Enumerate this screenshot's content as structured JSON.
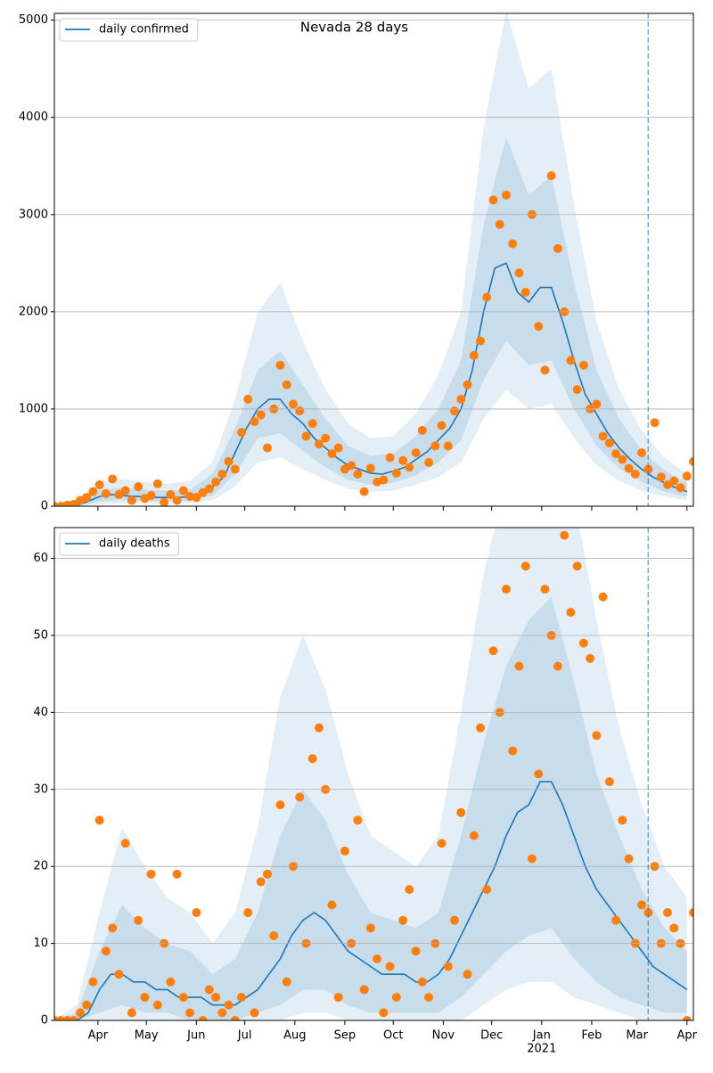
{
  "chart_data": [
    {
      "type": "line",
      "title": "Nevada 28 days",
      "xlim": [
        4,
        400
      ],
      "ylim": [
        0,
        5070
      ],
      "yticks": [
        0,
        1000,
        2000,
        3000,
        4000,
        5000
      ],
      "xticks": [
        31,
        61,
        92,
        122,
        153,
        184,
        214,
        245,
        275,
        306,
        337,
        365,
        396
      ],
      "grid": true,
      "legend": "upper left",
      "vline": 372,
      "series": [
        {
          "name": "daily confirmed",
          "color": "#1f77b4",
          "x": [
            4,
            11,
            18,
            25,
            32,
            39,
            46,
            53,
            60,
            67,
            74,
            81,
            88,
            95,
            102,
            109,
            116,
            123,
            130,
            137,
            144,
            151,
            158,
            165,
            172,
            179,
            186,
            193,
            200,
            207,
            214,
            221,
            228,
            235,
            242,
            249,
            256,
            263,
            270,
            277,
            284,
            291,
            298,
            305,
            312,
            319,
            326,
            333,
            340,
            347,
            354,
            361,
            368,
            375,
            382,
            389,
            396
          ],
          "values": [
            0,
            0,
            10,
            50,
            100,
            120,
            110,
            100,
            100,
            90,
            90,
            90,
            100,
            130,
            200,
            300,
            550,
            800,
            1000,
            1100,
            1100,
            950,
            850,
            700,
            600,
            500,
            420,
            380,
            340,
            330,
            360,
            400,
            480,
            560,
            680,
            800,
            1000,
            1400,
            2000,
            2450,
            2500,
            2200,
            2100,
            2250,
            2250,
            1900,
            1500,
            1150,
            950,
            750,
            600,
            480,
            380,
            300,
            240,
            190,
            150
          ]
        },
        {
          "color": "#ff7f0e",
          "x": [
            4,
            8,
            12,
            16,
            20,
            24,
            28,
            32,
            36,
            40,
            44,
            48,
            52,
            56,
            60,
            64,
            68,
            72,
            76,
            80,
            84,
            88,
            92,
            96,
            100,
            104,
            108,
            112,
            116,
            120,
            124,
            128,
            132,
            136,
            140,
            144,
            148,
            152,
            156,
            160,
            164,
            168,
            172,
            176,
            180,
            184,
            188,
            192,
            196,
            200,
            204,
            208,
            212,
            216,
            220,
            224,
            228,
            232,
            236,
            240,
            244,
            248,
            252,
            256,
            260,
            264,
            268,
            272,
            276,
            280,
            284,
            288,
            292,
            296,
            300,
            304,
            308,
            312,
            316,
            320,
            324,
            328,
            332,
            336,
            340,
            344,
            348,
            352,
            356,
            360,
            364,
            368,
            372,
            376,
            380,
            384,
            388,
            392,
            396,
            400
          ],
          "values": [
            0,
            0,
            10,
            20,
            60,
            90,
            150,
            220,
            130,
            280,
            120,
            160,
            60,
            200,
            80,
            110,
            230,
            40,
            120,
            60,
            160,
            100,
            90,
            140,
            180,
            250,
            330,
            460,
            380,
            760,
            1100,
            870,
            940,
            600,
            1000,
            1450,
            1250,
            1050,
            980,
            720,
            850,
            640,
            700,
            540,
            600,
            380,
            420,
            330,
            150,
            390,
            250,
            270,
            500,
            340,
            470,
            400,
            550,
            780,
            450,
            620,
            830,
            620,
            980,
            1100,
            1250,
            1550,
            1700,
            2150,
            3150,
            2900,
            3200,
            2700,
            2400,
            2200,
            3000,
            1850,
            1400,
            3400,
            2650,
            2000,
            1500,
            1200,
            1450,
            1000,
            1050,
            720,
            650,
            540,
            480,
            390,
            330,
            550,
            380,
            860,
            300,
            220,
            260,
            190,
            310,
            460
          ]
        }
      ],
      "bands": [
        {
          "color": "#1f77b4",
          "opacity": 0.12,
          "x": [
            4,
            18,
            32,
            46,
            60,
            74,
            88,
            102,
            116,
            130,
            144,
            158,
            172,
            186,
            200,
            214,
            228,
            242,
            256,
            270,
            284,
            298,
            312,
            326,
            340,
            354,
            368,
            382,
            396
          ],
          "lower": [
            0,
            0,
            20,
            30,
            30,
            30,
            30,
            60,
            200,
            450,
            500,
            380,
            270,
            180,
            150,
            160,
            220,
            300,
            450,
            900,
            1200,
            1000,
            1050,
            700,
            420,
            260,
            160,
            100,
            60
          ],
          "upper": [
            20,
            60,
            250,
            280,
            250,
            230,
            260,
            450,
            1100,
            2000,
            2300,
            1700,
            1200,
            850,
            700,
            720,
            950,
            1350,
            2000,
            3900,
            5100,
            4300,
            4500,
            3100,
            1900,
            1200,
            780,
            500,
            330
          ]
        },
        {
          "color": "#1f77b4",
          "opacity": 0.14,
          "x": [
            4,
            18,
            32,
            46,
            60,
            74,
            88,
            102,
            116,
            130,
            144,
            158,
            172,
            186,
            200,
            214,
            228,
            242,
            256,
            270,
            284,
            298,
            312,
            326,
            340,
            354,
            368,
            382,
            396
          ],
          "lower": [
            0,
            0,
            50,
            60,
            55,
            50,
            55,
            110,
            330,
            700,
            750,
            570,
            400,
            270,
            220,
            240,
            320,
            450,
            680,
            1300,
            1700,
            1450,
            1500,
            1000,
            620,
            390,
            250,
            150,
            95
          ],
          "upper": [
            10,
            30,
            170,
            190,
            170,
            160,
            170,
            330,
            800,
            1400,
            1600,
            1250,
            900,
            620,
            520,
            540,
            720,
            1000,
            1500,
            2900,
            3800,
            3200,
            3400,
            2300,
            1400,
            900,
            570,
            370,
            240
          ]
        }
      ]
    },
    {
      "type": "line",
      "xlim": [
        4,
        400
      ],
      "ylim": [
        0,
        64
      ],
      "yticks": [
        0,
        10,
        20,
        30,
        40,
        50,
        60
      ],
      "xticks": [
        {
          "value": 31,
          "label": "Apr"
        },
        {
          "value": 61,
          "label": "May"
        },
        {
          "value": 92,
          "label": "Jun"
        },
        {
          "value": 122,
          "label": "Jul"
        },
        {
          "value": 153,
          "label": "Aug"
        },
        {
          "value": 184,
          "label": "Sep"
        },
        {
          "value": 214,
          "label": "Oct"
        },
        {
          "value": 245,
          "label": "Nov"
        },
        {
          "value": 275,
          "label": "Dec"
        },
        {
          "value": 306,
          "label": "Jan"
        },
        {
          "value": 337,
          "label": "Feb"
        },
        {
          "value": 365,
          "label": "Mar"
        },
        {
          "value": 396,
          "label": "Apr"
        }
      ],
      "x_year_marker": {
        "value": 306,
        "label": "2021"
      },
      "grid": true,
      "legend": "upper left",
      "vline": 372,
      "series": [
        {
          "name": "daily deaths",
          "color": "#1f77b4",
          "x": [
            4,
            11,
            18,
            25,
            32,
            39,
            46,
            53,
            60,
            67,
            74,
            81,
            88,
            95,
            102,
            109,
            116,
            123,
            130,
            137,
            144,
            151,
            158,
            165,
            172,
            179,
            186,
            193,
            200,
            207,
            214,
            221,
            228,
            235,
            242,
            249,
            256,
            263,
            270,
            277,
            284,
            291,
            298,
            305,
            312,
            319,
            326,
            333,
            340,
            347,
            354,
            361,
            368,
            375,
            382,
            389,
            396
          ],
          "values": [
            0,
            0,
            0,
            1,
            4,
            6,
            6,
            5,
            5,
            4,
            4,
            3,
            3,
            3,
            2,
            2,
            2,
            3,
            4,
            6,
            8,
            11,
            13,
            14,
            13,
            11,
            9,
            8,
            7,
            6,
            6,
            6,
            5,
            5,
            6,
            8,
            11,
            14,
            17,
            20,
            24,
            27,
            28,
            31,
            31,
            28,
            24,
            20,
            17,
            15,
            13,
            11,
            9,
            7,
            6,
            5,
            4
          ]
        },
        {
          "color": "#ff7f0e",
          "x": [
            4,
            8,
            12,
            16,
            20,
            24,
            28,
            32,
            36,
            40,
            44,
            48,
            52,
            56,
            60,
            64,
            68,
            72,
            76,
            80,
            84,
            88,
            92,
            96,
            100,
            104,
            108,
            112,
            116,
            120,
            124,
            128,
            132,
            136,
            140,
            144,
            148,
            152,
            156,
            160,
            164,
            168,
            172,
            176,
            180,
            184,
            188,
            192,
            196,
            200,
            204,
            208,
            212,
            216,
            220,
            224,
            228,
            232,
            236,
            240,
            244,
            248,
            252,
            256,
            260,
            264,
            268,
            272,
            276,
            280,
            284,
            288,
            292,
            296,
            300,
            304,
            308,
            312,
            316,
            320,
            324,
            328,
            332,
            336,
            340,
            344,
            348,
            352,
            356,
            360,
            364,
            368,
            372,
            376,
            380,
            384,
            388,
            392,
            396,
            400
          ],
          "values": [
            0,
            0,
            0,
            0,
            1,
            2,
            5,
            26,
            9,
            12,
            6,
            23,
            1,
            13,
            3,
            19,
            2,
            10,
            5,
            19,
            3,
            1,
            14,
            0,
            4,
            3,
            1,
            2,
            0,
            3,
            14,
            1,
            18,
            19,
            11,
            28,
            5,
            20,
            29,
            10,
            34,
            38,
            30,
            15,
            3,
            22,
            10,
            26,
            4,
            12,
            8,
            1,
            7,
            3,
            13,
            17,
            9,
            5,
            3,
            10,
            23,
            7,
            13,
            27,
            6,
            24,
            38,
            17,
            48,
            40,
            56,
            35,
            46,
            59,
            21,
            32,
            56,
            50,
            46,
            63,
            53,
            59,
            49,
            47,
            37,
            55,
            31,
            13,
            26,
            21,
            10,
            15,
            14,
            20,
            10,
            14,
            12,
            10,
            0,
            14
          ]
        }
      ],
      "bands": [
        {
          "color": "#1f77b4",
          "opacity": 0.12,
          "x": [
            4,
            18,
            32,
            46,
            60,
            74,
            88,
            102,
            116,
            130,
            144,
            158,
            172,
            186,
            200,
            214,
            228,
            242,
            256,
            270,
            284,
            298,
            312,
            326,
            340,
            354,
            368,
            382,
            396
          ],
          "lower": [
            0,
            0,
            0,
            0,
            0,
            0,
            0,
            0,
            0,
            0,
            0,
            1,
            1,
            0,
            0,
            0,
            0,
            0,
            0,
            2,
            4,
            5,
            5,
            3,
            2,
            1,
            0,
            0,
            0
          ],
          "upper": [
            0,
            2,
            14,
            25,
            20,
            16,
            14,
            10,
            14,
            25,
            42,
            50,
            43,
            32,
            24,
            22,
            20,
            24,
            40,
            58,
            70,
            75,
            75,
            68,
            52,
            38,
            28,
            20,
            16
          ]
        },
        {
          "color": "#1f77b4",
          "opacity": 0.14,
          "x": [
            4,
            18,
            32,
            46,
            60,
            74,
            88,
            102,
            116,
            130,
            144,
            158,
            172,
            186,
            200,
            214,
            228,
            242,
            256,
            270,
            284,
            298,
            312,
            326,
            340,
            354,
            368,
            382,
            396
          ],
          "lower": [
            0,
            0,
            1,
            2,
            1,
            1,
            0,
            0,
            0,
            1,
            2,
            4,
            4,
            2,
            1,
            1,
            1,
            1,
            3,
            6,
            9,
            11,
            12,
            8,
            5,
            3,
            2,
            1,
            1
          ],
          "upper": [
            0,
            1,
            9,
            15,
            12,
            10,
            9,
            6,
            8,
            14,
            24,
            30,
            26,
            19,
            14,
            13,
            12,
            14,
            24,
            36,
            46,
            52,
            55,
            44,
            32,
            24,
            17,
            12,
            9
          ]
        }
      ]
    }
  ]
}
